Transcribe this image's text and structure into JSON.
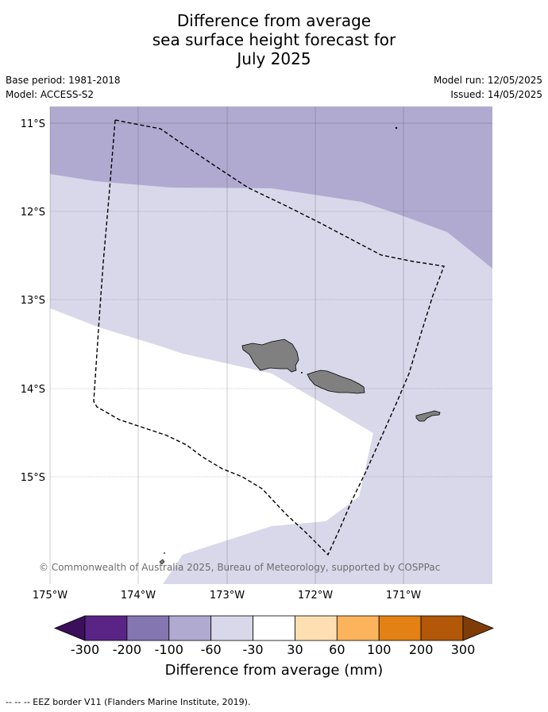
{
  "title": {
    "line1": "Difference from average",
    "line2": "sea surface height forecast for",
    "line3": "July 2025"
  },
  "meta": {
    "base_period": "Base period: 1981-2018",
    "model": "Model: ACCESS-S2",
    "model_run": "Model run: 12/05/2025",
    "issued": "Issued: 14/05/2025"
  },
  "map": {
    "lat_labels": [
      "11°S",
      "12°S",
      "13°S",
      "14°S",
      "15°S"
    ],
    "lon_labels": [
      "175°W",
      "174°W",
      "173°W",
      "172°W",
      "171°W"
    ],
    "copyright": "© Commonwealth of Australia 2025, Bureau of Meteorology, supported by COSPPac",
    "colors": {
      "band_-100_-60": "#b0aad1",
      "band_-60_-30": "#d8d8ea",
      "band_-30_30": "#ffffff",
      "land": "#808080",
      "eez_line": "#000000",
      "grid": "#555555"
    }
  },
  "colorbar": {
    "tick_labels": [
      "-300",
      "-200",
      "-100",
      "-60",
      "-30",
      "30",
      "60",
      "100",
      "200",
      "300"
    ],
    "colors": [
      "#3b0f5c",
      "#5a2486",
      "#8476b0",
      "#b0aad1",
      "#d8d8ea",
      "#ffffff",
      "#fedfb2",
      "#fbb45c",
      "#e38114",
      "#b25808",
      "#7f3b08"
    ],
    "label": "Difference from average (mm)"
  },
  "footnote": "--  --  -- EEZ border V11 (Flanders Marine Institute, 2019)."
}
